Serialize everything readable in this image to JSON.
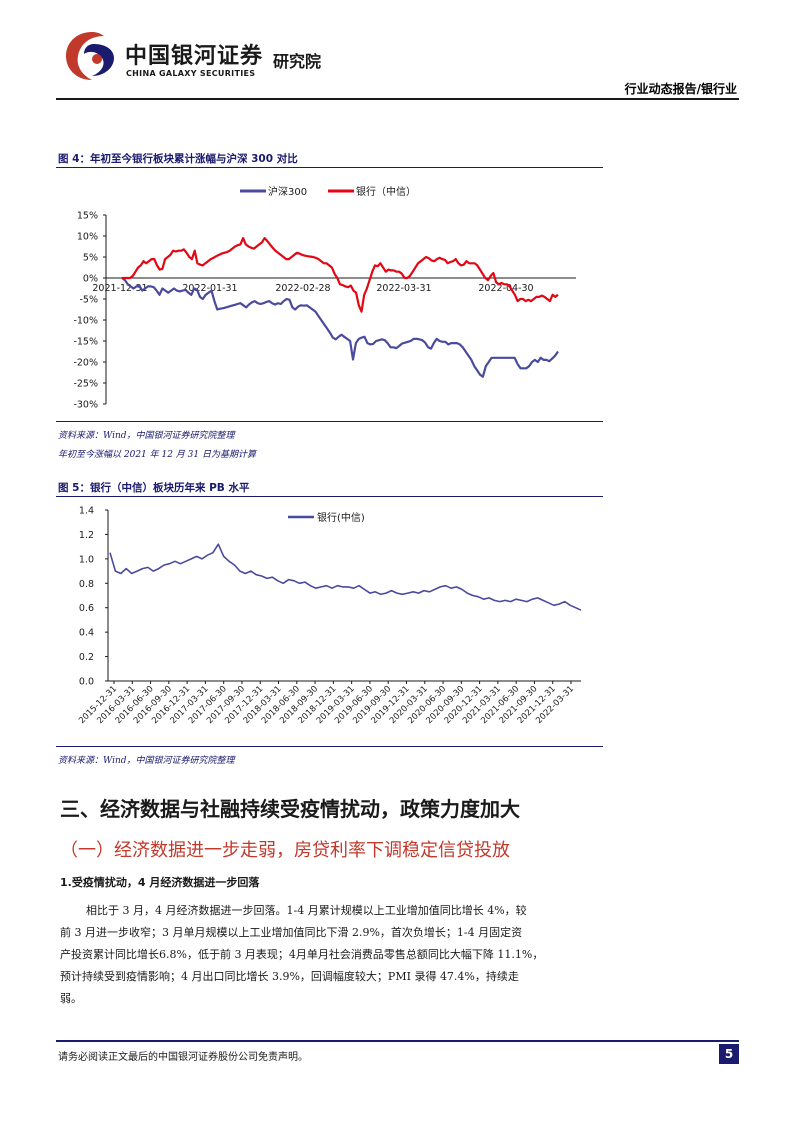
{
  "header": {
    "company_cn": "中国银河证券",
    "company_en": "CHINA GALAXY SECURITIES",
    "dept": "研究院",
    "report_type": "行业动态报告/银行业",
    "brand_color": "#c0392b",
    "navy_color": "#1a1a6e"
  },
  "figure4": {
    "title": "图 4：年初至今银行板块累计涨幅与沪深 300 对比",
    "source": "资料来源：Wind，中国银河证券研究院整理",
    "note": "年初至今涨幅以 2021 年 12 月 31 日为基期计算"
  },
  "figure5": {
    "title": "图 5：银行（中信）板块历年来 PB 水平",
    "source": "资料来源：Wind，中国银河证券研究院整理"
  },
  "section": {
    "heading": "三、经济数据与社融持续受疫情扰动，政策力度加大",
    "subheading": "（一）经济数据进一步走弱，房贷利率下调稳定信贷投放",
    "point": "1.受疫情扰动，4 月经济数据进一步回落",
    "paragraph_lines": [
      "相比于 3 月，4 月经济数据进一步回落。1-4 月累计规模以上工业增加值同比增长 4%，较",
      "前 3 月进一步收窄；3 月单月规模以上工业增加值同比下滑 2.9%，首次负增长；1-4 月固定资",
      "产投资累计同比增长6.8%，低于前 3 月表现；4月单月社会消费品零售总额同比大幅下降 11.1%，",
      "预计持续受到疫情影响；4 月出口同比增长 3.9%，回调幅度较大；PMI 录得 47.4%，持续走",
      "弱。"
    ]
  },
  "footer": {
    "disclaimer": "请务必阅读正文最后的中国银河证券股份公司免责声明。",
    "page_number": "5"
  },
  "chart_data": [
    {
      "type": "line",
      "ylim": [
        -30,
        15
      ],
      "yticks": [
        "15%",
        "10%",
        "5%",
        "0%",
        "-5%",
        "-10%",
        "-15%",
        "-20%",
        "-25%",
        "-30%"
      ],
      "xtick_labels": [
        "2021-12-31",
        "2022-01-31",
        "2022-02-28",
        "2022-03-31",
        "2022-04-30"
      ],
      "legend_position": "top",
      "series": [
        {
          "name": "沪深300",
          "color": "#4a4a9e",
          "values": [
            0,
            -0.5,
            -1.5,
            -2,
            -2.5,
            -2,
            -1.8,
            -3,
            -2.5,
            -2,
            -2,
            -2.2,
            -3,
            -4,
            -2.5,
            -3,
            -3.5,
            -3,
            -2.5,
            -3,
            -3.2,
            -3,
            -2.8,
            -3.5,
            -4,
            -2.5,
            -2.8,
            -4.5,
            -5,
            -4,
            -3.5,
            -3,
            -5.5,
            -7.5,
            -7.3,
            -7.2,
            -7,
            -6.8,
            -6.6,
            -6.4,
            -6.2,
            -6,
            -6.5,
            -7,
            -6.3,
            -5.8,
            -5.5,
            -6,
            -6.2,
            -6,
            -5.7,
            -5.5,
            -6,
            -6.3,
            -6,
            -6.2,
            -5.5,
            -5,
            -5.2,
            -7,
            -7.5,
            -6.8,
            -6.5,
            -6.6,
            -6.5,
            -7,
            -7.5,
            -8,
            -9,
            -10,
            -11,
            -12,
            -13,
            -14.2,
            -14.6,
            -14,
            -13.5,
            -14,
            -14.5,
            -15,
            -19.4,
            -15.5,
            -14.5,
            -14.2,
            -14,
            -15.5,
            -15.8,
            -15.7,
            -15,
            -14.8,
            -14.6,
            -14.8,
            -15.5,
            -16.5,
            -16.5,
            -16.7,
            -16.2,
            -15.6,
            -15.4,
            -15.2,
            -15,
            -14.5,
            -14.5,
            -14.6,
            -14.8,
            -15.4,
            -16.5,
            -16.8,
            -15.5,
            -14.5,
            -15,
            -15.2,
            -15.2,
            -15.8,
            -15.5,
            -15.5,
            -15.5,
            -15.8,
            -16.5,
            -17.5,
            -18.5,
            -19.5,
            -21,
            -22,
            -23,
            -23.5,
            -21,
            -20,
            -19,
            -19,
            -19,
            -19,
            -19,
            -19,
            -19,
            -19,
            -19,
            -20.5,
            -21.5,
            -21.5,
            -21.5,
            -21,
            -20,
            -19.5,
            -20,
            -19,
            -19.5,
            -19.5,
            -19.8,
            -19.2,
            -18.5,
            -17.5
          ]
        },
        {
          "name": "银行（中信）",
          "color": "#e30613",
          "values": [
            0,
            0,
            0,
            0,
            0.5,
            1.5,
            2.5,
            3,
            4,
            3.5,
            4,
            4.5,
            4.5,
            3,
            2,
            2.2,
            4.5,
            5,
            5.5,
            6.5,
            6.3,
            6.5,
            6.5,
            6.8,
            6,
            5,
            4.5,
            6.5,
            3.5,
            3.2,
            3,
            3.5,
            4,
            4.5,
            4.8,
            5.2,
            5.5,
            5.8,
            6,
            6.2,
            6.5,
            7,
            7.5,
            7.8,
            8,
            9.5,
            8,
            7.5,
            7.2,
            7,
            7.5,
            8,
            8.5,
            9.5,
            8.8,
            8,
            7.2,
            6.5,
            6,
            5.5,
            5,
            4.5,
            4.5,
            5,
            5.5,
            6,
            5.8,
            5.5,
            5.3,
            5.2,
            5.1,
            5,
            4.8,
            4.5,
            4,
            3.5,
            3.5,
            3,
            2.5,
            1,
            0,
            -1.5,
            -1.7,
            -2,
            -2.2,
            -1.8,
            -3,
            -3.5,
            -6.5,
            -8,
            -4,
            -2.5,
            -0.5,
            1.5,
            3,
            2.8,
            3.5,
            2.5,
            1.5,
            2,
            1.8,
            1.8,
            1.5,
            1.5,
            1,
            0,
            0,
            0.5,
            1.5,
            2.5,
            3.5,
            4,
            4.5,
            5,
            4.7,
            4.2,
            4,
            4.5,
            4.8,
            4.5,
            4.3,
            3.5,
            3.8,
            4,
            4.5,
            3.5,
            3,
            3.2,
            4,
            3.5,
            3.5,
            3.5,
            3,
            2,
            1,
            0,
            -0.5,
            0.5,
            1.2,
            -1,
            -1.5,
            -1.2,
            -1.5,
            -1.5,
            -2,
            -3,
            -4,
            -5.5,
            -5,
            -5,
            -5.5,
            -5.2,
            -5.5,
            -5,
            -4.5,
            -4.5,
            -4.2,
            -4.5,
            -5,
            -5.5,
            -4,
            -4.5,
            -4
          ]
        }
      ]
    },
    {
      "type": "line",
      "ylim": [
        0,
        1.4
      ],
      "yticks": [
        "1.4",
        "1.2",
        "1.0",
        "0.8",
        "0.6",
        "0.4",
        "0.2",
        "0.0"
      ],
      "xtick_labels": [
        "2015-12-31",
        "2016-03-31",
        "2016-06-30",
        "2016-09-30",
        "2016-12-31",
        "2017-03-31",
        "2017-06-30",
        "2017-09-30",
        "2017-12-31",
        "2018-03-31",
        "2018-06-30",
        "2018-09-30",
        "2018-12-31",
        "2019-03-31",
        "2019-06-30",
        "2019-09-30",
        "2019-12-31",
        "2020-03-31",
        "2020-06-30",
        "2020-09-30",
        "2020-12-31",
        "2021-03-31",
        "2021-06-30",
        "2021-09-30",
        "2021-12-31",
        "2022-03-31"
      ],
      "legend_position": "top-center",
      "series": [
        {
          "name": "银行(中信)",
          "color": "#4a4a9e",
          "values": [
            1.05,
            0.9,
            0.88,
            0.92,
            0.88,
            0.9,
            0.92,
            0.93,
            0.9,
            0.92,
            0.95,
            0.96,
            0.98,
            0.96,
            0.98,
            1.0,
            1.02,
            1.0,
            1.03,
            1.05,
            1.12,
            1.02,
            0.98,
            0.95,
            0.9,
            0.88,
            0.9,
            0.87,
            0.86,
            0.84,
            0.85,
            0.82,
            0.8,
            0.83,
            0.82,
            0.8,
            0.81,
            0.78,
            0.76,
            0.77,
            0.78,
            0.76,
            0.78,
            0.77,
            0.77,
            0.76,
            0.78,
            0.75,
            0.72,
            0.73,
            0.71,
            0.72,
            0.74,
            0.72,
            0.71,
            0.72,
            0.73,
            0.72,
            0.74,
            0.73,
            0.75,
            0.77,
            0.78,
            0.76,
            0.77,
            0.75,
            0.72,
            0.7,
            0.69,
            0.67,
            0.68,
            0.66,
            0.65,
            0.66,
            0.65,
            0.67,
            0.66,
            0.65,
            0.67,
            0.68,
            0.66,
            0.64,
            0.62,
            0.63,
            0.65,
            0.62,
            0.6,
            0.58
          ]
        }
      ]
    }
  ]
}
